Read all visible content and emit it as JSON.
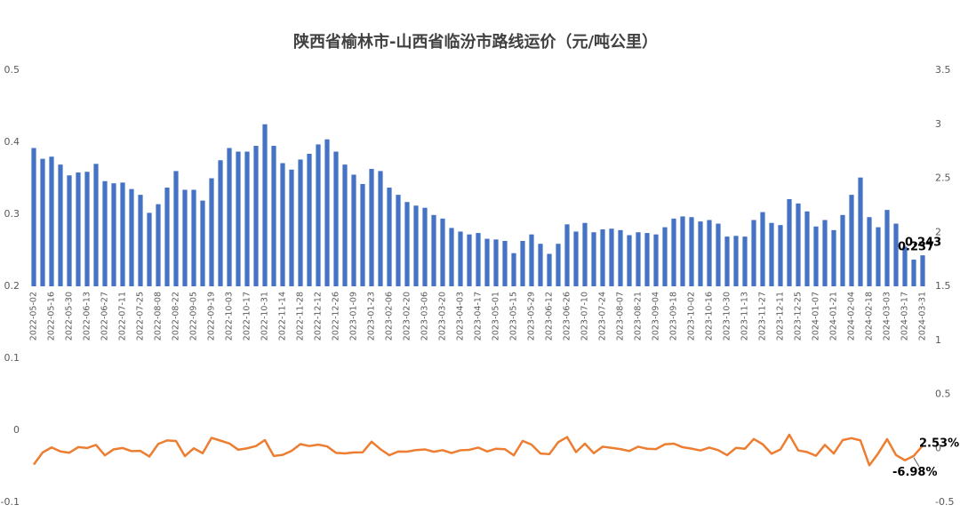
{
  "chart_data": {
    "type": "bar_line",
    "title": "陕西省榆林市-山西省临汾市路线运价（元/吨公里）",
    "categories": [
      "2022-05-02",
      null,
      "2022-05-16",
      null,
      "2022-05-30",
      null,
      "2022-06-13",
      null,
      "2022-06-27",
      null,
      "2022-07-11",
      null,
      "2022-07-25",
      null,
      "2022-08-08",
      null,
      "2022-08-22",
      null,
      "2022-09-05",
      null,
      "2022-09-19",
      null,
      "2022-10-03",
      null,
      "2022-10-17",
      null,
      "2022-10-31",
      null,
      "2022-11-14",
      null,
      "2022-11-28",
      null,
      "2022-12-12",
      null,
      "2022-12-26",
      null,
      "2023-01-09",
      null,
      "2023-01-23",
      null,
      "2023-02-06",
      null,
      "2023-02-20",
      null,
      "2023-03-06",
      null,
      "2023-03-20",
      null,
      "2023-04-03",
      null,
      "2023-04-17",
      null,
      "2023-05-01",
      null,
      "2023-05-15",
      null,
      "2023-05-29",
      null,
      "2023-06-12",
      null,
      "2023-06-26",
      null,
      "2023-07-10",
      null,
      "2023-07-24",
      null,
      "2023-08-07",
      null,
      "2023-08-21",
      null,
      "2023-09-04",
      null,
      "2023-09-18",
      null,
      "2023-10-02",
      null,
      "2023-10-16",
      null,
      "2023-10-30",
      null,
      "2023-11-13",
      null,
      "2023-11-27",
      null,
      "2023-12-11",
      null,
      "2023-12-25",
      null,
      "2024-01-07",
      null,
      "2024-01-21",
      null,
      "2024-02-04",
      null,
      "2024-02-18",
      null,
      "2024-03-03",
      null,
      "2024-03-17",
      null,
      "2024-03-31"
    ],
    "series": [
      {
        "type": "bar",
        "color": "#4472c4",
        "axis": "y",
        "values": [
          0.392,
          0.377,
          0.38,
          0.369,
          0.354,
          0.358,
          0.359,
          0.37,
          0.346,
          0.343,
          0.344,
          0.335,
          0.327,
          0.302,
          0.314,
          0.337,
          0.36,
          0.334,
          0.334,
          0.319,
          0.35,
          0.375,
          0.392,
          0.387,
          0.387,
          0.395,
          0.425,
          0.395,
          0.371,
          0.362,
          0.376,
          0.384,
          0.397,
          0.404,
          0.387,
          0.369,
          0.355,
          0.342,
          0.363,
          0.36,
          0.337,
          0.327,
          0.317,
          0.312,
          0.309,
          0.299,
          0.294,
          0.281,
          0.276,
          0.272,
          0.274,
          0.266,
          0.265,
          0.263,
          0.246,
          0.263,
          0.272,
          0.259,
          0.245,
          0.259,
          0.286,
          0.276,
          0.288,
          0.275,
          0.279,
          0.28,
          0.278,
          0.271,
          0.275,
          0.274,
          0.272,
          0.282,
          0.294,
          0.297,
          0.296,
          0.29,
          0.292,
          0.287,
          0.269,
          0.27,
          0.269,
          0.292,
          0.303,
          0.288,
          0.285,
          0.321,
          0.315,
          0.304,
          0.283,
          0.292,
          0.278,
          0.299,
          0.327,
          0.351,
          0.296,
          0.282,
          0.306,
          0.287,
          0.255,
          0.237,
          0.243
        ],
        "value_labels": [
          null,
          null,
          null,
          null,
          null,
          null,
          null,
          null,
          null,
          null,
          null,
          null,
          null,
          null,
          null,
          null,
          null,
          null,
          null,
          null,
          null,
          null,
          null,
          null,
          null,
          null,
          null,
          null,
          null,
          null,
          null,
          null,
          null,
          null,
          null,
          null,
          null,
          null,
          null,
          null,
          null,
          null,
          null,
          null,
          null,
          null,
          null,
          null,
          null,
          null,
          null,
          null,
          null,
          null,
          null,
          null,
          null,
          null,
          null,
          null,
          null,
          null,
          null,
          null,
          null,
          null,
          null,
          null,
          null,
          null,
          null,
          null,
          null,
          null,
          null,
          null,
          null,
          null,
          null,
          null,
          null,
          null,
          null,
          null,
          null,
          null,
          null,
          null,
          null,
          null,
          null,
          null,
          null,
          null,
          null,
          null,
          null,
          null,
          null,
          "0.237",
          "0.243"
        ]
      },
      {
        "type": "line",
        "color": "#ed7d31",
        "axis": "y2",
        "values": [
          -0.15,
          -0.038,
          0.008,
          -0.029,
          -0.041,
          0.011,
          0.003,
          0.031,
          -0.065,
          -0.009,
          0.003,
          -0.026,
          -0.024,
          -0.076,
          0.04,
          0.073,
          0.068,
          -0.072,
          0,
          -0.045,
          0.097,
          0.071,
          0.045,
          -0.013,
          0,
          0.021,
          0.076,
          -0.071,
          -0.061,
          -0.024,
          0.039,
          0.021,
          0.034,
          0.018,
          -0.042,
          -0.047,
          -0.038,
          -0.037,
          0.061,
          -0.008,
          -0.064,
          -0.03,
          -0.031,
          -0.016,
          -0.01,
          -0.032,
          -0.017,
          -0.044,
          -0.018,
          -0.014,
          0.007,
          -0.029,
          -0.004,
          -0.008,
          -0.065,
          0.069,
          0.034,
          -0.048,
          -0.054,
          0.057,
          0.104,
          -0.035,
          0.043,
          -0.045,
          0.015,
          0.004,
          -0.007,
          -0.025,
          0.015,
          -0.004,
          -0.007,
          0.037,
          0.043,
          0.01,
          -0.003,
          -0.02,
          0.007,
          -0.017,
          -0.063,
          0.004,
          -0.004,
          0.086,
          0.038,
          -0.05,
          -0.01,
          0.126,
          -0.019,
          -0.035,
          -0.069,
          0.032,
          -0.048,
          0.076,
          0.094,
          0.073,
          -0.157,
          -0.047,
          0.085,
          -0.062,
          -0.111,
          -0.0698,
          0.0253
        ],
        "value_labels": [
          null,
          null,
          null,
          null,
          null,
          null,
          null,
          null,
          null,
          null,
          null,
          null,
          null,
          null,
          null,
          null,
          null,
          null,
          null,
          null,
          null,
          null,
          null,
          null,
          null,
          null,
          null,
          null,
          null,
          null,
          null,
          null,
          null,
          null,
          null,
          null,
          null,
          null,
          null,
          null,
          null,
          null,
          null,
          null,
          null,
          null,
          null,
          null,
          null,
          null,
          null,
          null,
          null,
          null,
          null,
          null,
          null,
          null,
          null,
          null,
          null,
          null,
          null,
          null,
          null,
          null,
          null,
          null,
          null,
          null,
          null,
          null,
          null,
          null,
          null,
          null,
          null,
          null,
          null,
          null,
          null,
          null,
          null,
          null,
          null,
          null,
          null,
          null,
          null,
          null,
          null,
          null,
          null,
          null,
          null,
          null,
          null,
          null,
          null,
          "-6.98%",
          "2.53%"
        ]
      }
    ],
    "ylim": [
      -0.1,
      0.5
    ],
    "yticks": [
      -0.1,
      0,
      0.1,
      0.2,
      0.3,
      0.4,
      0.5
    ],
    "y2lim": [
      -0.5,
      3.5
    ],
    "y2ticks": [
      -0.5,
      0,
      0.5,
      1,
      1.5,
      2,
      2.5,
      3,
      3.5
    ],
    "grid": false
  }
}
